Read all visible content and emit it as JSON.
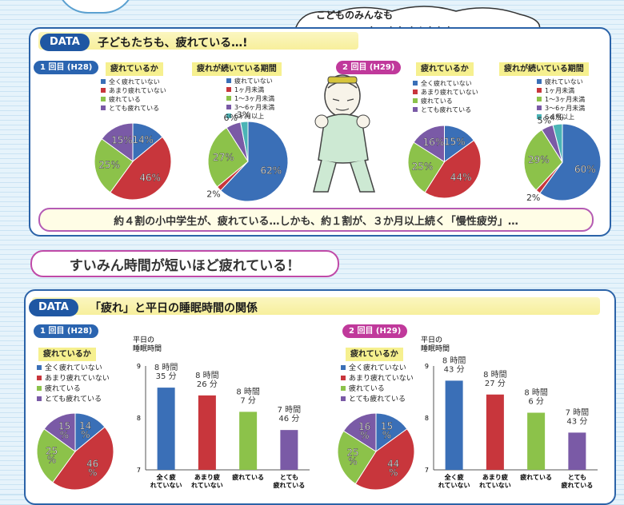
{
  "speech_bubble": {
    "line1": "こどものみんなも",
    "line2": "おつかれさんやかな…!!"
  },
  "top_panel": {
    "tag": "DATA",
    "title": "子どもたちも、疲れている…!",
    "note": "約４割の小中学生が、疲れている…しかも、約１割が、３か月以上続く「慢性疲労」…"
  },
  "section_title": "すいみん時間が短いほど疲れている！",
  "bottom_panel": {
    "tag": "DATA",
    "title": "「疲れ」と平日の睡眠時間の関係"
  },
  "rounds": {
    "r1": "1 回目 (H28)",
    "r2": "2 回目 (H29)",
    "r1b": "1 回目 (H28)",
    "r2b": "2 回目 (H29)"
  },
  "colors": {
    "c1": "#3a6fb7",
    "c2": "#c8363c",
    "c3": "#8cc24a",
    "c4": "#7a5aa6",
    "c5": "#4bb4b6",
    "round1": "#2a64b0",
    "round2": "#c0399b"
  },
  "chart_data": [
    {
      "type": "pie",
      "title": "疲れているか",
      "round": "1回目(H28)",
      "categories": [
        "全く疲れていない",
        "あまり疲れていない",
        "疲れている",
        "とても疲れている"
      ],
      "values": [
        14,
        46,
        25,
        15
      ],
      "labels": [
        "14%",
        "46%",
        "25%",
        "15%"
      ]
    },
    {
      "type": "pie",
      "title": "疲れが続いている期間",
      "round": "1回目(H28)",
      "categories": [
        "疲れていない",
        "1ヶ月未満",
        "1〜3ヶ月未満",
        "3〜6ヶ月未満",
        "6ヶ月以上"
      ],
      "values": [
        62,
        2,
        27,
        6,
        3
      ],
      "labels": [
        "62%",
        "2%",
        "27%",
        "6%",
        "3%"
      ]
    },
    {
      "type": "pie",
      "title": "疲れているか",
      "round": "2回目(H29)",
      "categories": [
        "全く疲れていない",
        "あまり疲れていない",
        "疲れている",
        "とても疲れている"
      ],
      "values": [
        15,
        44,
        25,
        16
      ],
      "labels": [
        "15%",
        "44%",
        "25%",
        "16%"
      ]
    },
    {
      "type": "pie",
      "title": "疲れが続いている期間",
      "round": "2回目(H29)",
      "categories": [
        "疲れていない",
        "1ヶ月未満",
        "1〜3ヶ月未満",
        "3〜6ヶ月未満",
        "6ヶ月以上"
      ],
      "values": [
        60,
        2,
        29,
        5,
        4
      ],
      "labels": [
        "60%",
        "2%",
        "29%",
        "5%",
        "4%"
      ]
    },
    {
      "type": "pie",
      "title": "疲れているか",
      "round": "1回目(H28)",
      "categories": [
        "全く疲れていない",
        "あまり疲れていない",
        "疲れている",
        "とても疲れている"
      ],
      "values": [
        14,
        46,
        25,
        15
      ],
      "labels": [
        "14\n%",
        "46\n%",
        "25\n%",
        "15\n%"
      ]
    },
    {
      "type": "bar",
      "round": "1回目(H28)",
      "ylabel": "平日の睡眠時間",
      "ylim": [
        7,
        9
      ],
      "yticks": [
        "9",
        "8",
        "7"
      ],
      "categories": [
        "全く疲れていない",
        "あまり疲れていない",
        "疲れている",
        "とても疲れている"
      ],
      "values": [
        8.583,
        8.433,
        8.117,
        7.767
      ],
      "labels": [
        [
          "8 時間",
          "35 分"
        ],
        [
          "8 時間",
          "26 分"
        ],
        [
          "8 時間",
          "7 分"
        ],
        [
          "7 時間",
          "46 分"
        ]
      ]
    },
    {
      "type": "pie",
      "title": "疲れているか",
      "round": "2回目(H29)",
      "categories": [
        "全く疲れていない",
        "あまり疲れていない",
        "疲れている",
        "とても疲れている"
      ],
      "values": [
        15,
        44,
        25,
        16
      ],
      "labels": [
        "15\n%",
        "44\n%",
        "25\n%",
        "16\n%"
      ]
    },
    {
      "type": "bar",
      "round": "2回目(H29)",
      "ylabel": "平日の睡眠時間",
      "ylim": [
        7,
        9
      ],
      "yticks": [
        "9",
        "8",
        "7"
      ],
      "categories": [
        "全く疲れていない",
        "あまり疲れていない",
        "疲れている",
        "とても疲れている"
      ],
      "values": [
        8.717,
        8.45,
        8.1,
        7.717
      ],
      "labels": [
        [
          "8 時間",
          "43 分"
        ],
        [
          "8 時間",
          "27 分"
        ],
        [
          "8 時間",
          "6 分"
        ],
        [
          "7 時間",
          "43 分"
        ]
      ]
    }
  ]
}
